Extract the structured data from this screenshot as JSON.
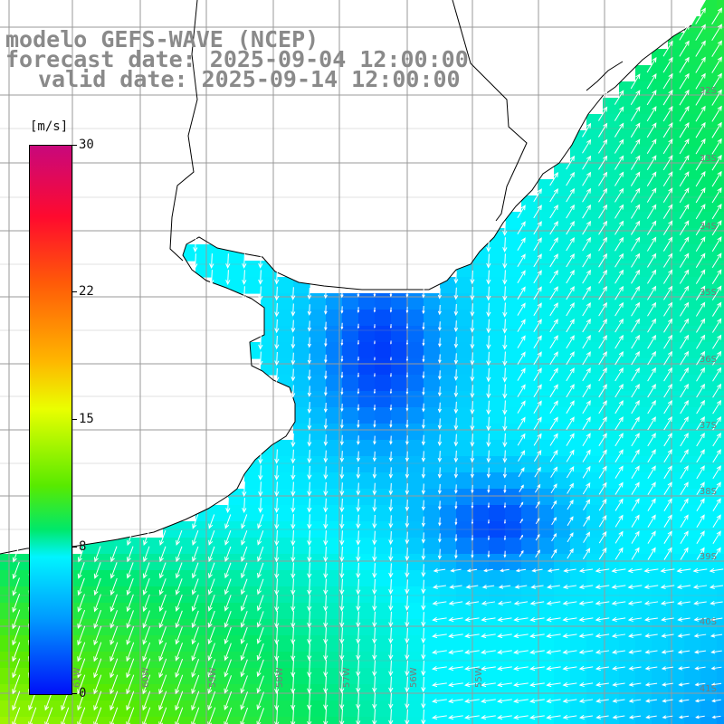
{
  "title": {
    "line1": "modelo GEFS-WAVE (NCEP)",
    "line2": "forecast date: 2025-09-04 12:00:00",
    "line3": "valid date: 2025-09-14 12:00:00"
  },
  "colorbar": {
    "unit": "[m/s]",
    "min": 0,
    "max": 30,
    "ticks": [
      "30",
      "22",
      "15",
      "8",
      "0"
    ],
    "tick_values": [
      30,
      22,
      15,
      8,
      0
    ],
    "colors": [
      "#0010f8",
      "#009cff",
      "#00f4ff",
      "#00e86a",
      "#58ea00",
      "#eaff00",
      "#ffb400",
      "#ff5a08",
      "#ff0a2e",
      "#c8087c"
    ]
  },
  "map": {
    "land_color": "#ffffff",
    "grid_color": "#9a9a9a",
    "coastline_color": "#000000",
    "lat_labels": [
      "32S",
      "33S",
      "34S",
      "35S",
      "36S",
      "37S",
      "38S",
      "39S",
      "40S",
      "41S"
    ],
    "lon_labels": [
      "61W",
      "60W",
      "59W",
      "58W",
      "57W",
      "56W",
      "55W"
    ]
  }
}
